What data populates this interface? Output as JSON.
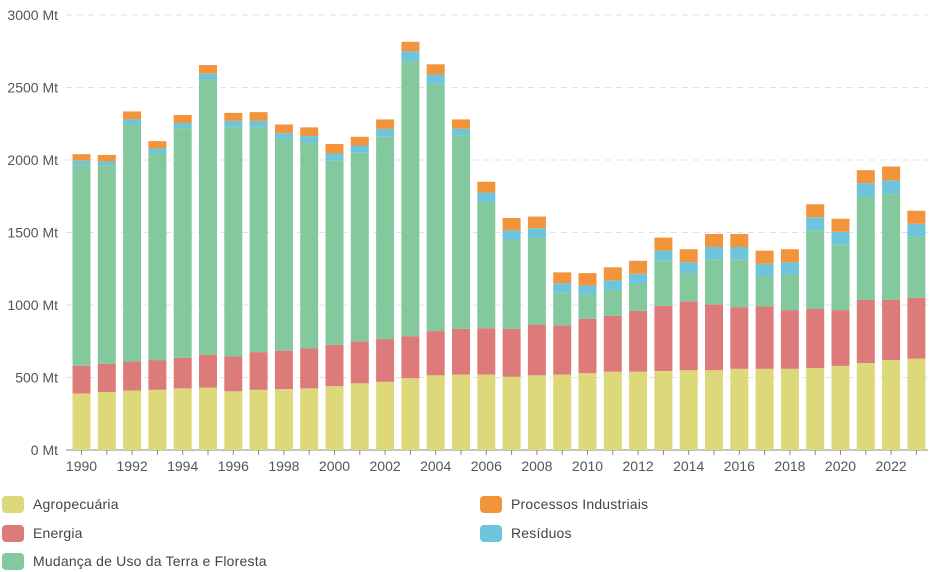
{
  "chart_data": {
    "type": "bar",
    "stacked": true,
    "categories": [
      "1990",
      "1991",
      "1992",
      "1993",
      "1994",
      "1995",
      "1996",
      "1997",
      "1998",
      "1999",
      "2000",
      "2001",
      "2002",
      "2003",
      "2004",
      "2005",
      "2006",
      "2007",
      "2008",
      "2009",
      "2010",
      "2011",
      "2012",
      "2013",
      "2014",
      "2015",
      "2016",
      "2017",
      "2018",
      "2019",
      "2020",
      "2021",
      "2022",
      "2023"
    ],
    "x_tick_labels": [
      "1990",
      "1992",
      "1994",
      "1996",
      "1998",
      "2000",
      "2002",
      "2004",
      "2006",
      "2008",
      "2010",
      "2012",
      "2014",
      "2016",
      "2018",
      "2020",
      "2022"
    ],
    "y_ticks": [
      0,
      500,
      1000,
      1500,
      2000,
      2500,
      3000
    ],
    "y_tick_suffix": " Mt",
    "ylim": [
      0,
      3000
    ],
    "grid": true,
    "legend_position": "bottom",
    "series": [
      {
        "name": "Agropecuária",
        "color": "#DDD97A",
        "values": [
          390,
          400,
          410,
          415,
          425,
          430,
          405,
          415,
          420,
          425,
          440,
          460,
          470,
          495,
          515,
          520,
          520,
          505,
          515,
          520,
          530,
          540,
          540,
          545,
          550,
          550,
          560,
          560,
          560,
          565,
          580,
          600,
          620,
          630
        ]
      },
      {
        "name": "Energia",
        "color": "#DD7B7B",
        "values": [
          190,
          195,
          200,
          205,
          210,
          225,
          240,
          260,
          265,
          275,
          285,
          290,
          295,
          290,
          305,
          315,
          320,
          330,
          350,
          340,
          375,
          385,
          420,
          450,
          475,
          455,
          425,
          430,
          405,
          410,
          385,
          435,
          415,
          420
        ]
      },
      {
        "name": "Mudança de Uso da Terra e Floresta",
        "color": "#84C99E",
        "values": [
          1385,
          1365,
          1635,
          1425,
          1585,
          1900,
          1585,
          1555,
          1460,
          1420,
          1270,
          1300,
          1395,
          1895,
          1705,
          1335,
          870,
          610,
          600,
          225,
          165,
          175,
          185,
          310,
          195,
          310,
          330,
          210,
          245,
          540,
          450,
          710,
          730,
          420
        ]
      },
      {
        "name": "Resíduos",
        "color": "#6EC4DB",
        "values": [
          30,
          30,
          35,
          35,
          35,
          40,
          40,
          40,
          40,
          45,
          50,
          50,
          55,
          70,
          65,
          45,
          65,
          70,
          65,
          65,
          65,
          70,
          70,
          70,
          75,
          85,
          85,
          85,
          85,
          90,
          90,
          95,
          95,
          90
        ]
      },
      {
        "name": "Processos Industriais",
        "color": "#F2943C",
        "values": [
          45,
          45,
          55,
          50,
          55,
          60,
          55,
          60,
          60,
          60,
          65,
          60,
          65,
          65,
          70,
          65,
          75,
          85,
          80,
          75,
          85,
          90,
          90,
          90,
          90,
          90,
          90,
          90,
          90,
          90,
          90,
          90,
          95,
          90
        ]
      }
    ],
    "legend_order": [
      "Agropecuária",
      "Processos Industriais",
      "Energia",
      "Resíduos",
      "Mudança de Uso da Terra e Floresta"
    ]
  }
}
